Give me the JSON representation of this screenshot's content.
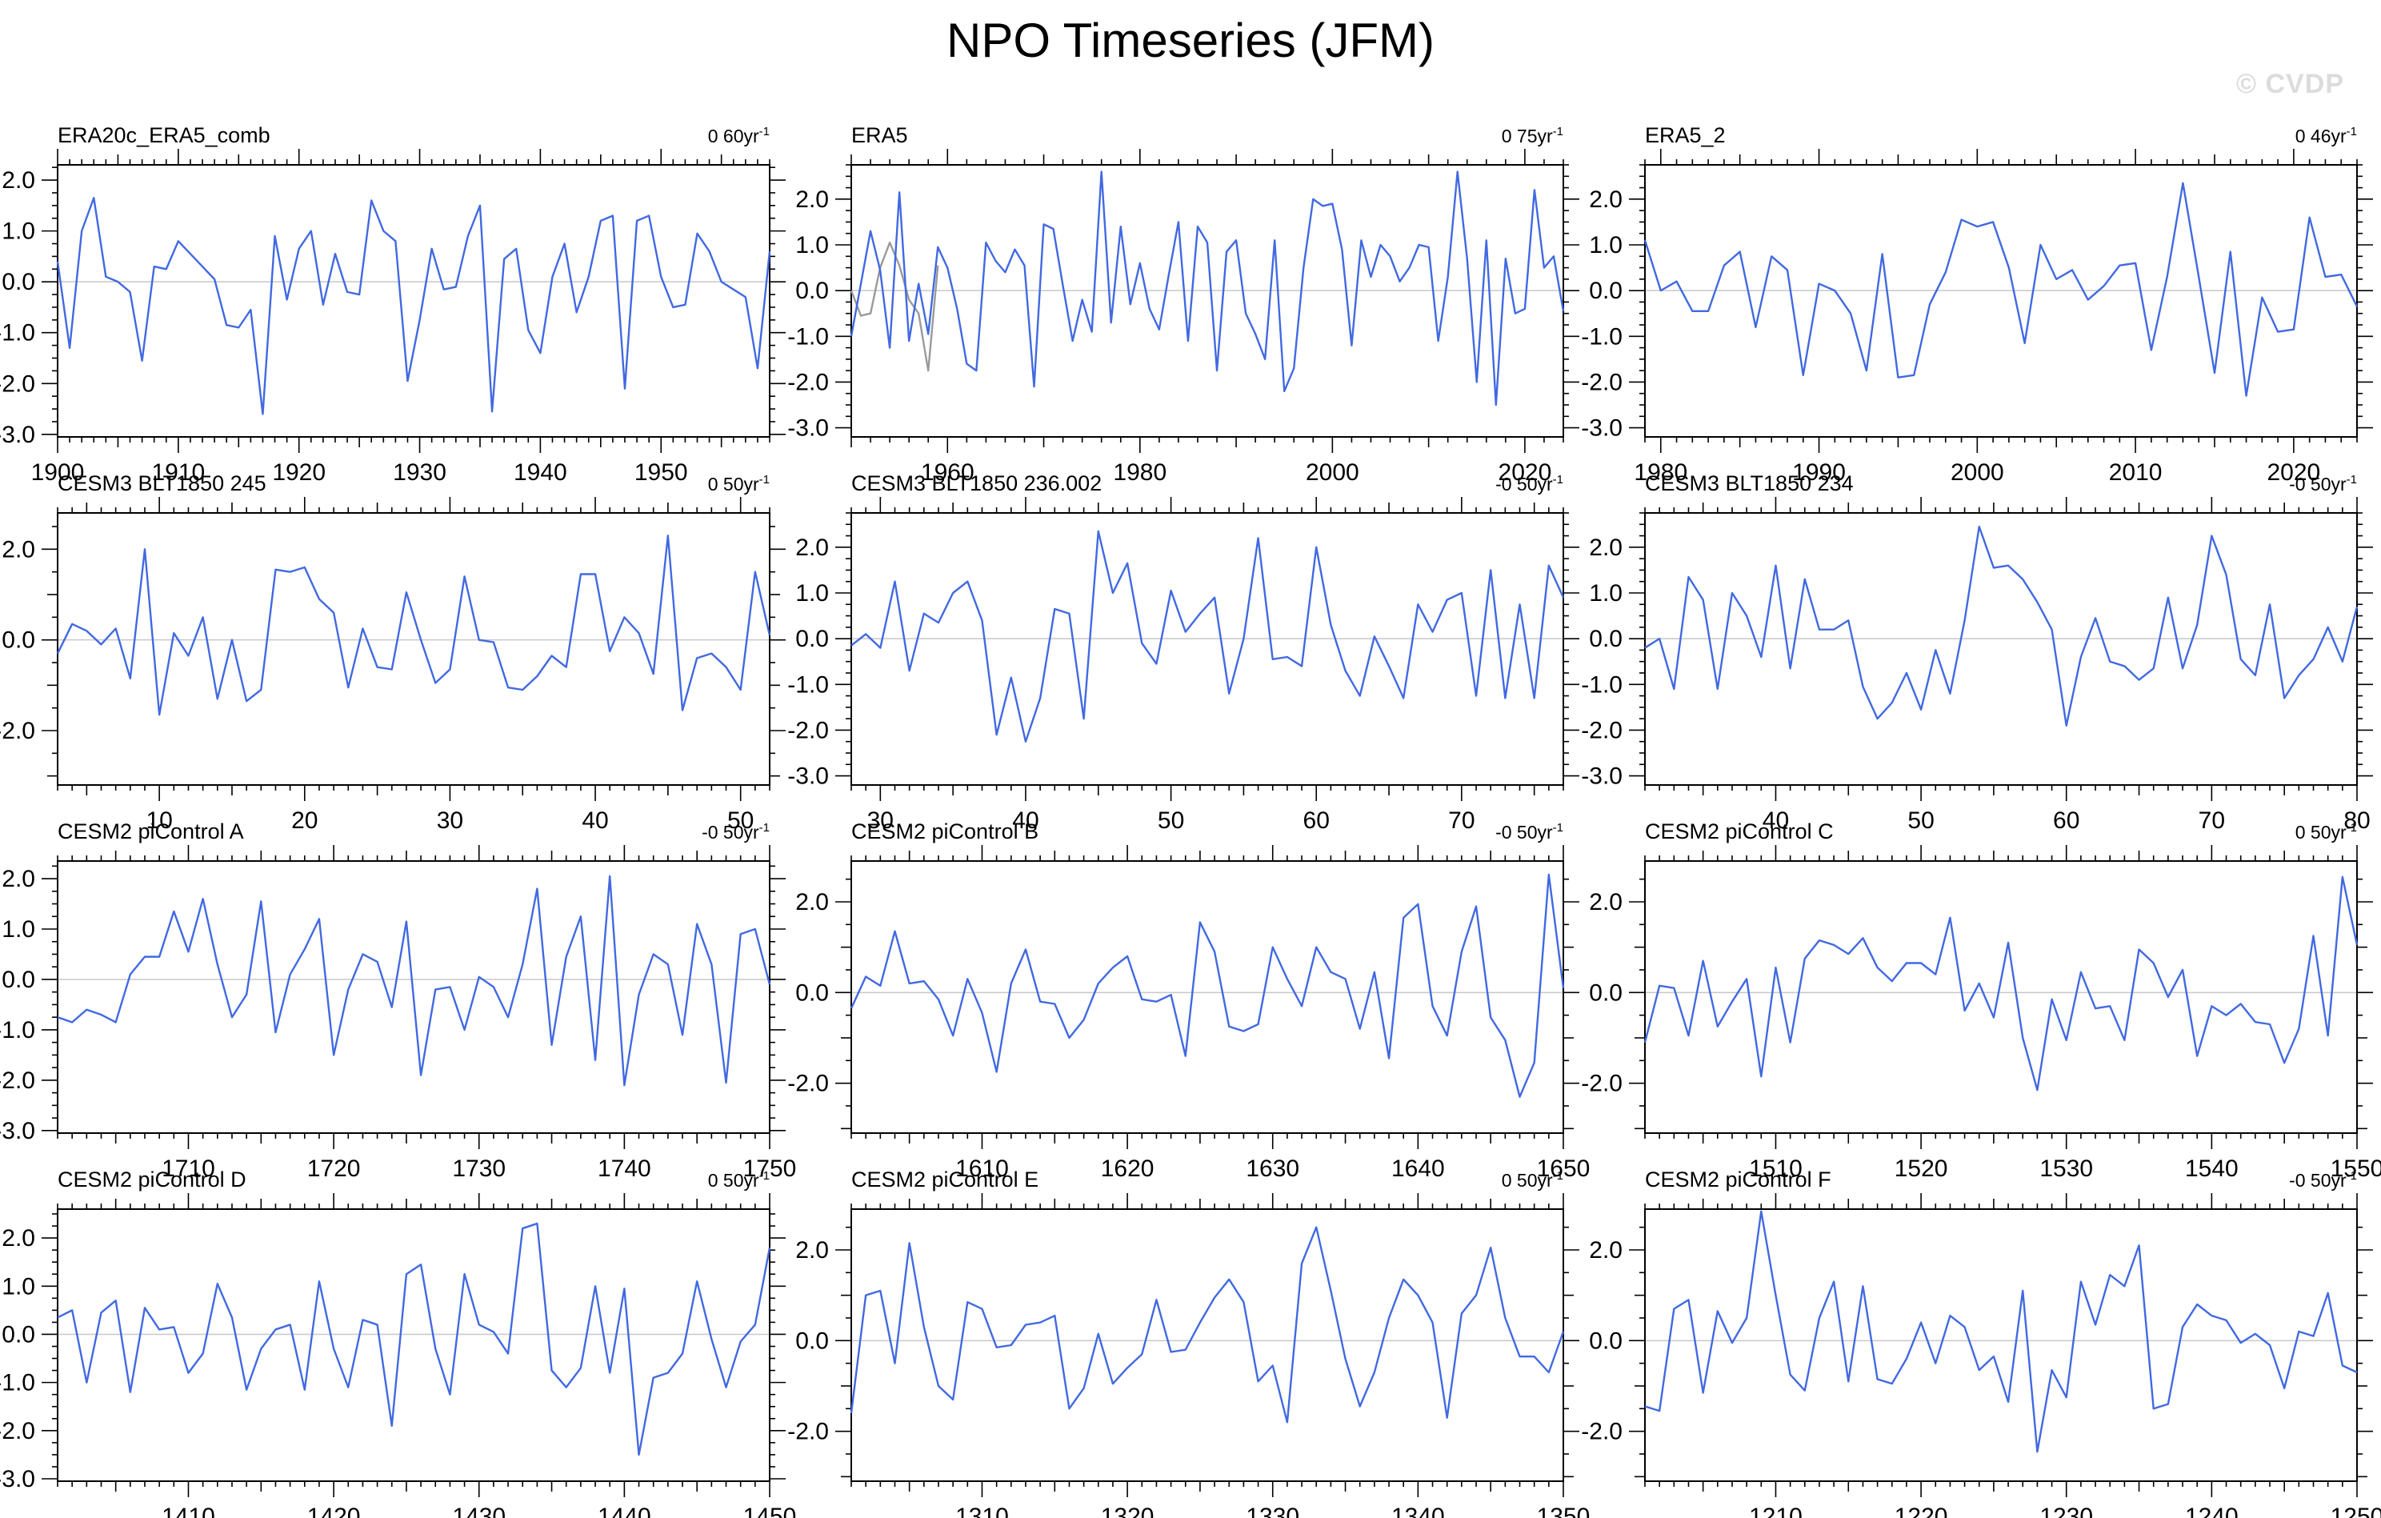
{
  "page_title": "NPO Timeseries (JFM)",
  "watermark": "© CVDP",
  "style": {
    "line_color": "#4169e1",
    "secondary_line_color": "#9a9a9a",
    "zero_line_color": "#c8c8c8",
    "axis_color": "#000000",
    "watermark_color": "#dcdcdc"
  },
  "chart_data": [
    {
      "type": "line",
      "title": "ERA20c_ERA5_comb",
      "trend_label": "0 60yr",
      "trend_superscript": "-1",
      "x_start": 1900,
      "x_end": 1959,
      "x_labels": [
        1900,
        1910,
        1920,
        1930,
        1940,
        1950
      ],
      "x_minor_step": 1,
      "x_major_step": 5,
      "y_labels": [
        2,
        1,
        0,
        -1,
        -2,
        -3
      ],
      "y_minor_step": 0.25,
      "y_major_step": 1,
      "ylim": [
        -3.05,
        2.3
      ],
      "values": [
        0.4,
        -1.3,
        1.0,
        1.65,
        0.1,
        0.0,
        -0.2,
        -1.55,
        0.3,
        0.25,
        0.8,
        0.55,
        0.3,
        0.05,
        -0.85,
        -0.9,
        -0.55,
        -2.6,
        0.9,
        -0.35,
        0.65,
        1.0,
        -0.45,
        0.55,
        -0.2,
        -0.25,
        1.6,
        1.0,
        0.8,
        -1.95,
        -0.75,
        0.65,
        -0.15,
        -0.1,
        0.9,
        1.5,
        -2.55,
        0.45,
        0.65,
        -0.95,
        -1.4,
        0.1,
        0.75,
        -0.6,
        0.1,
        1.2,
        1.3,
        -2.1,
        1.2,
        1.3,
        0.1,
        -0.5,
        -0.45,
        0.95,
        0.6,
        0.0,
        -0.15,
        -0.3,
        -1.7,
        0.6
      ]
    },
    {
      "type": "line",
      "title": "ERA5",
      "trend_label": "0 75yr",
      "trend_superscript": "-1",
      "x_start": 1950,
      "x_end": 2024,
      "x_labels": [
        1960,
        1980,
        2000,
        2020
      ],
      "x_minor_step": 2,
      "x_major_step": 10,
      "y_labels": [
        2,
        1,
        0,
        -1,
        -2,
        -3
      ],
      "y_minor_step": 0.25,
      "y_major_step": 1,
      "ylim": [
        -3.2,
        2.75
      ],
      "values": [
        -1.0,
        0.15,
        1.3,
        0.45,
        -1.25,
        2.15,
        -1.1,
        0.15,
        -0.95,
        0.95,
        0.5,
        -0.4,
        -1.6,
        -1.75,
        1.05,
        0.65,
        0.4,
        0.9,
        0.55,
        -2.1,
        1.45,
        1.35,
        0.1,
        -1.1,
        -0.2,
        -0.9,
        2.6,
        -0.7,
        1.4,
        -0.3,
        0.6,
        -0.4,
        -0.85,
        0.35,
        1.5,
        -1.1,
        1.4,
        1.05,
        -1.75,
        0.85,
        1.1,
        -0.5,
        -0.95,
        -1.5,
        1.1,
        -2.2,
        -1.7,
        0.5,
        2.0,
        1.85,
        1.9,
        0.9,
        -1.2,
        1.1,
        0.3,
        1.0,
        0.75,
        0.2,
        0.5,
        1.0,
        0.95,
        -1.1,
        0.3,
        2.6,
        0.7,
        -2.0,
        1.1,
        -2.5,
        0.7,
        -0.5,
        -0.4,
        2.2,
        0.5,
        0.75,
        -0.45
      ],
      "secondary": {
        "x_start": 1950,
        "values": [
          0.0,
          -0.55,
          -0.5,
          0.5,
          1.05,
          0.55,
          -0.2,
          -0.5,
          -1.75,
          0.55
        ]
      }
    },
    {
      "type": "line",
      "title": "ERA5_2",
      "trend_label": "0 46yr",
      "trend_superscript": "-1",
      "x_start": 1979,
      "x_end": 2024,
      "x_labels": [
        1980,
        1990,
        2000,
        2010,
        2020
      ],
      "x_minor_step": 1,
      "x_major_step": 5,
      "y_labels": [
        2,
        1,
        0,
        -1,
        -2,
        -3
      ],
      "y_minor_step": 0.25,
      "y_major_step": 1,
      "ylim": [
        -3.2,
        2.75
      ],
      "values": [
        1.1,
        0.0,
        0.2,
        -0.45,
        -0.45,
        0.55,
        0.85,
        -0.8,
        0.75,
        0.45,
        -1.85,
        0.15,
        0.0,
        -0.5,
        -1.75,
        0.8,
        -1.9,
        -1.85,
        -0.3,
        0.4,
        1.55,
        1.4,
        1.5,
        0.5,
        -1.15,
        1.0,
        0.25,
        0.45,
        -0.2,
        0.1,
        0.55,
        0.6,
        -1.3,
        0.3,
        2.35,
        0.3,
        -1.8,
        0.85,
        -2.3,
        -0.15,
        -0.9,
        -0.85,
        1.6,
        0.3,
        0.35,
        -0.35
      ]
    },
    {
      "type": "line",
      "title": "CESM3 BLT1850 245",
      "trend_label": "0 50yr",
      "trend_superscript": "-1",
      "x_start": 3,
      "x_end": 52,
      "x_labels": [
        10,
        20,
        30,
        40,
        50
      ],
      "x_minor_step": 1,
      "x_major_step": 5,
      "y_labels": [
        2,
        0,
        -2
      ],
      "y_minor_step": 0.5,
      "y_major_step": 1,
      "ylim": [
        -3.2,
        2.8
      ],
      "values": [
        -0.3,
        0.35,
        0.2,
        -0.1,
        0.25,
        -0.85,
        2.0,
        -1.65,
        0.15,
        -0.35,
        0.5,
        -1.3,
        0.0,
        -1.35,
        -1.1,
        1.55,
        1.5,
        1.6,
        0.9,
        0.6,
        -1.05,
        0.25,
        -0.6,
        -0.65,
        1.05,
        0.0,
        -0.95,
        -0.65,
        1.4,
        0.0,
        -0.05,
        -1.05,
        -1.1,
        -0.8,
        -0.35,
        -0.6,
        1.45,
        1.45,
        -0.25,
        0.5,
        0.15,
        -0.75,
        2.3,
        -1.55,
        -0.4,
        -0.3,
        -0.6,
        -1.1,
        1.5,
        0.1
      ]
    },
    {
      "type": "line",
      "title": "CESM3 BLT1850 236.002",
      "trend_label": "-0 50yr",
      "trend_superscript": "-1",
      "x_start": 28,
      "x_end": 77,
      "x_labels": [
        30,
        40,
        50,
        60,
        70
      ],
      "x_minor_step": 1,
      "x_major_step": 5,
      "y_labels": [
        2,
        1,
        0,
        -1,
        -2,
        -3
      ],
      "y_minor_step": 0.25,
      "y_major_step": 1,
      "ylim": [
        -3.2,
        2.75
      ],
      "values": [
        -0.15,
        0.1,
        -0.2,
        1.25,
        -0.7,
        0.55,
        0.35,
        1.0,
        1.25,
        0.4,
        -2.1,
        -0.85,
        -2.25,
        -1.3,
        0.65,
        0.55,
        -1.75,
        2.35,
        1.0,
        1.65,
        -0.1,
        -0.55,
        1.05,
        0.15,
        0.55,
        0.9,
        -1.2,
        0.0,
        2.2,
        -0.45,
        -0.4,
        -0.6,
        2.0,
        0.3,
        -0.7,
        -1.25,
        0.05,
        -0.6,
        -1.3,
        0.75,
        0.15,
        0.85,
        1.0,
        -1.25,
        1.5,
        -1.3,
        0.75,
        -1.3,
        1.6,
        0.9
      ]
    },
    {
      "type": "line",
      "title": "CESM3 BLT1850 234",
      "trend_label": "-0 50yr",
      "trend_superscript": "-1",
      "x_start": 31,
      "x_end": 80,
      "x_labels": [
        40,
        50,
        60,
        70,
        80
      ],
      "x_minor_step": 1,
      "x_major_step": 5,
      "y_labels": [
        2,
        1,
        0,
        -1,
        -2,
        -3
      ],
      "y_minor_step": 0.25,
      "y_major_step": 1,
      "ylim": [
        -3.2,
        2.75
      ],
      "values": [
        -0.2,
        0.0,
        -1.1,
        1.35,
        0.85,
        -1.1,
        1.0,
        0.5,
        -0.4,
        1.6,
        -0.65,
        1.3,
        0.2,
        0.2,
        0.4,
        -1.05,
        -1.75,
        -1.4,
        -0.75,
        -1.55,
        -0.25,
        -1.2,
        0.4,
        2.45,
        1.55,
        1.6,
        1.3,
        0.8,
        0.2,
        -1.9,
        -0.4,
        0.45,
        -0.5,
        -0.6,
        -0.9,
        -0.65,
        0.9,
        -0.65,
        0.3,
        2.25,
        1.4,
        -0.45,
        -0.8,
        0.75,
        -1.3,
        -0.8,
        -0.45,
        0.25,
        -0.5,
        0.7
      ]
    },
    {
      "type": "line",
      "title": "CESM2 piControl A",
      "trend_label": "-0 50yr",
      "trend_superscript": "-1",
      "x_start": 1701,
      "x_end": 1750,
      "x_labels": [
        1710,
        1720,
        1730,
        1740,
        1750
      ],
      "x_minor_step": 1,
      "x_major_step": 5,
      "y_labels": [
        2,
        1,
        0,
        -1,
        -2,
        -3
      ],
      "y_minor_step": 0.25,
      "y_major_step": 1,
      "ylim": [
        -3.05,
        2.35
      ],
      "values": [
        -0.75,
        -0.85,
        -0.6,
        -0.7,
        -0.85,
        0.1,
        0.45,
        0.45,
        1.35,
        0.55,
        1.6,
        0.3,
        -0.75,
        -0.3,
        1.55,
        -1.05,
        0.1,
        0.6,
        1.2,
        -1.5,
        -0.2,
        0.5,
        0.35,
        -0.55,
        1.15,
        -1.9,
        -0.2,
        -0.15,
        -1.0,
        0.05,
        -0.15,
        -0.75,
        0.3,
        1.8,
        -1.3,
        0.45,
        1.25,
        -1.6,
        2.05,
        -2.1,
        -0.3,
        0.5,
        0.3,
        -1.1,
        1.1,
        0.3,
        -2.05,
        0.9,
        1.0,
        -0.1
      ]
    },
    {
      "type": "line",
      "title": "CESM2 piControl B",
      "trend_label": "-0 50yr",
      "trend_superscript": "-1",
      "x_start": 1601,
      "x_end": 1650,
      "x_labels": [
        1610,
        1620,
        1630,
        1640,
        1650
      ],
      "x_minor_step": 1,
      "x_major_step": 5,
      "y_labels": [
        2,
        0,
        -2
      ],
      "y_minor_step": 0.5,
      "y_major_step": 1,
      "ylim": [
        -3.1,
        2.9
      ],
      "values": [
        -0.35,
        0.35,
        0.15,
        1.35,
        0.2,
        0.25,
        -0.15,
        -0.95,
        0.3,
        -0.45,
        -1.75,
        0.2,
        0.95,
        -0.2,
        -0.25,
        -1.0,
        -0.6,
        0.2,
        0.55,
        0.8,
        -0.15,
        -0.2,
        -0.05,
        -1.4,
        1.55,
        0.9,
        -0.75,
        -0.85,
        -0.7,
        1.0,
        0.3,
        -0.3,
        1.0,
        0.45,
        0.3,
        -0.8,
        0.45,
        -1.45,
        1.65,
        1.95,
        -0.3,
        -0.95,
        0.9,
        1.9,
        -0.55,
        -1.05,
        -2.3,
        -1.55,
        2.6,
        0.1
      ]
    },
    {
      "type": "line",
      "title": "CESM2 piControl C",
      "trend_label": "0 50yr",
      "trend_superscript": "-1",
      "x_start": 1501,
      "x_end": 1550,
      "x_labels": [
        1510,
        1520,
        1530,
        1540,
        1550
      ],
      "x_minor_step": 1,
      "x_major_step": 5,
      "y_labels": [
        2,
        0,
        -2
      ],
      "y_minor_step": 0.5,
      "y_major_step": 1,
      "ylim": [
        -3.1,
        2.9
      ],
      "values": [
        -1.1,
        0.15,
        0.1,
        -0.95,
        0.7,
        -0.75,
        -0.2,
        0.3,
        -1.85,
        0.55,
        -1.1,
        0.75,
        1.15,
        1.05,
        0.85,
        1.2,
        0.55,
        0.25,
        0.65,
        0.65,
        0.4,
        1.65,
        -0.4,
        0.2,
        -0.55,
        1.1,
        -1.0,
        -2.15,
        -0.15,
        -1.05,
        0.45,
        -0.35,
        -0.3,
        -1.05,
        0.95,
        0.65,
        -0.1,
        0.5,
        -1.4,
        -0.3,
        -0.5,
        -0.25,
        -0.65,
        -0.7,
        -1.55,
        -0.8,
        1.25,
        -0.95,
        2.55,
        1.05
      ]
    },
    {
      "type": "line",
      "title": "CESM2 piControl D",
      "trend_label": "0 50yr",
      "trend_superscript": "-1",
      "x_start": 1401,
      "x_end": 1450,
      "x_labels": [
        1410,
        1420,
        1430,
        1440,
        1450
      ],
      "x_minor_step": 1,
      "x_major_step": 5,
      "y_labels": [
        2,
        1,
        0,
        -1,
        -2,
        -3
      ],
      "y_minor_step": 0.25,
      "y_major_step": 1,
      "ylim": [
        -3.05,
        2.6
      ],
      "values": [
        0.35,
        0.5,
        -1.0,
        0.45,
        0.7,
        -1.2,
        0.55,
        0.1,
        0.15,
        -0.8,
        -0.4,
        1.05,
        0.35,
        -1.15,
        -0.3,
        0.1,
        0.2,
        -1.15,
        1.1,
        -0.3,
        -1.1,
        0.3,
        0.2,
        -1.9,
        1.25,
        1.45,
        -0.3,
        -1.25,
        1.25,
        0.2,
        0.05,
        -0.4,
        2.2,
        2.3,
        -0.75,
        -1.1,
        -0.7,
        1.0,
        -0.8,
        0.95,
        -2.5,
        -0.9,
        -0.8,
        -0.4,
        1.1,
        -0.1,
        -1.1,
        -0.15,
        0.2,
        1.8
      ]
    },
    {
      "type": "line",
      "title": "CESM2 piControl E",
      "trend_label": "0 50yr",
      "trend_superscript": "-1",
      "x_start": 1301,
      "x_end": 1350,
      "x_labels": [
        1310,
        1320,
        1330,
        1340,
        1350
      ],
      "x_minor_step": 1,
      "x_major_step": 5,
      "y_labels": [
        2,
        0,
        -2
      ],
      "y_minor_step": 0.5,
      "y_major_step": 1,
      "ylim": [
        -3.1,
        2.9
      ],
      "values": [
        -1.6,
        1.0,
        1.1,
        -0.5,
        2.15,
        0.3,
        -1.0,
        -1.3,
        0.85,
        0.7,
        -0.15,
        -0.1,
        0.35,
        0.4,
        0.55,
        -1.5,
        -1.05,
        0.15,
        -0.95,
        -0.6,
        -0.3,
        0.9,
        -0.25,
        -0.2,
        0.4,
        0.95,
        1.35,
        0.85,
        -0.9,
        -0.55,
        -1.8,
        1.7,
        2.5,
        1.1,
        -0.4,
        -1.45,
        -0.7,
        0.5,
        1.35,
        1.0,
        0.4,
        -1.7,
        0.6,
        1.0,
        2.05,
        0.5,
        -0.35,
        -0.35,
        -0.7,
        0.2
      ]
    },
    {
      "type": "line",
      "title": "CESM2 piControl F",
      "trend_label": "-0 50yr",
      "trend_superscript": "-1",
      "x_start": 1201,
      "x_end": 1250,
      "x_labels": [
        1210,
        1220,
        1230,
        1240,
        1250
      ],
      "x_minor_step": 1,
      "x_major_step": 5,
      "y_labels": [
        2,
        0,
        -2
      ],
      "y_minor_step": 0.5,
      "y_major_step": 1,
      "ylim": [
        -3.1,
        2.9
      ],
      "values": [
        -1.45,
        -1.55,
        0.7,
        0.9,
        -1.15,
        0.65,
        -0.05,
        0.5,
        2.85,
        1.0,
        -0.75,
        -1.1,
        0.5,
        1.3,
        -0.9,
        1.2,
        -0.85,
        -0.95,
        -0.4,
        0.4,
        -0.5,
        0.55,
        0.3,
        -0.65,
        -0.35,
        -1.35,
        1.1,
        -2.45,
        -0.65,
        -1.25,
        1.3,
        0.35,
        1.45,
        1.2,
        2.1,
        -1.5,
        -1.4,
        0.3,
        0.8,
        0.55,
        0.45,
        -0.05,
        0.15,
        -0.1,
        -1.05,
        0.2,
        0.1,
        1.05,
        -0.55,
        -0.7
      ]
    }
  ]
}
